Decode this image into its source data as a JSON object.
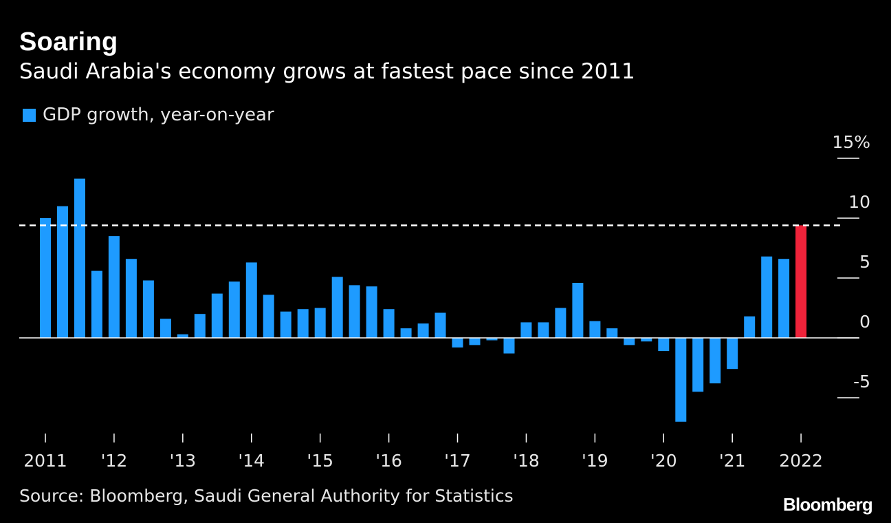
{
  "header": {
    "title": "Soaring",
    "subtitle": "Saudi Arabia's economy grows at fastest pace since 2011"
  },
  "legend": {
    "label": "GDP growth, year-on-year"
  },
  "footer": {
    "source": "Source: Bloomberg, Saudi General Authority for Statistics",
    "logo": "Bloomberg"
  },
  "colors": {
    "background": "#000000",
    "bar": "#1e9bff",
    "highlight_bar": "#f0233a",
    "axis": "#ffffff"
  },
  "chart_data": {
    "type": "bar",
    "title": "Soaring",
    "subtitle": "Saudi Arabia's economy grows at fastest pace since 2011",
    "series": [
      {
        "name": "GDP growth, year-on-year",
        "values": [
          10.0,
          11.0,
          13.3,
          5.6,
          8.5,
          6.6,
          4.8,
          1.6,
          0.3,
          2.0,
          3.7,
          4.7,
          6.3,
          3.6,
          2.2,
          2.4,
          2.5,
          5.1,
          4.4,
          4.3,
          2.4,
          0.8,
          1.2,
          2.1,
          -0.8,
          -0.6,
          -0.2,
          -1.3,
          1.3,
          1.3,
          2.5,
          4.6,
          1.4,
          0.8,
          -0.6,
          -0.3,
          -1.1,
          -7.0,
          -4.5,
          -3.8,
          -2.6,
          1.8,
          6.8,
          6.6,
          9.4
        ],
        "color": "#1e9bff"
      }
    ],
    "highlight_index": 44,
    "highlight_color": "#f0233a",
    "reference_line": {
      "value": 9.4,
      "style": "dashed"
    },
    "x_tick_labels": [
      "2011",
      "'12",
      "'13",
      "'14",
      "'15",
      "'16",
      "'17",
      "'18",
      "'19",
      "'20",
      "'21",
      "2022"
    ],
    "y_tick_labels": [
      "15%",
      "10",
      "5",
      "0",
      "-5"
    ],
    "y_ticks": [
      15,
      10,
      5,
      0,
      -5
    ],
    "ylim": [
      -8,
      15
    ],
    "xlabel": "",
    "ylabel": "",
    "grid": false,
    "y_axis_position": "right"
  }
}
